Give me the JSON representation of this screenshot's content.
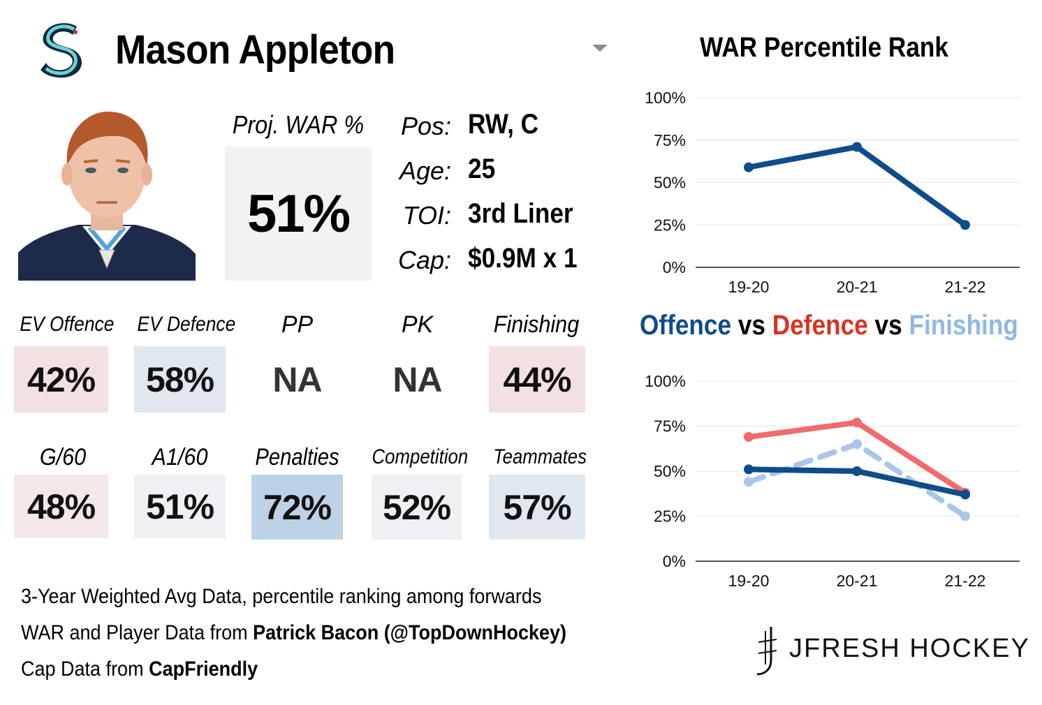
{
  "header": {
    "player_name": "Mason Appleton",
    "team_logo_icon": "seattle-kraken-logo-icon",
    "dropdown_icon": "caret-down-icon"
  },
  "projection": {
    "label": "Proj. WAR %",
    "value": "51%"
  },
  "info": [
    {
      "label": "Pos:",
      "value": "RW, C"
    },
    {
      "label": "Age:",
      "value": "25"
    },
    {
      "label": "TOI:",
      "value": "3rd Liner"
    },
    {
      "label": "Cap:",
      "value": "$0.9M x 1"
    }
  ],
  "tiles_row1": [
    {
      "label": "EV Offence",
      "value": "42%",
      "color": "#f3e1e1"
    },
    {
      "label": "EV Defence",
      "value": "58%",
      "color": "#dfe7ef"
    },
    {
      "label": "PP",
      "value": "NA",
      "color": "#ffffff"
    },
    {
      "label": "PK",
      "value": "NA",
      "color": "#ffffff"
    },
    {
      "label": "Finishing",
      "value": "44%",
      "color": "#f3e1e1"
    }
  ],
  "tiles_row2": [
    {
      "label": "G/60",
      "value": "48%",
      "color": "#f4e7e8"
    },
    {
      "label": "A1/60",
      "value": "51%",
      "color": "#eef0f3"
    },
    {
      "label": "Penalties",
      "value": "72%",
      "color": "#bdd2e6"
    },
    {
      "label": "Competition",
      "value": "52%",
      "color": "#eef0f3"
    },
    {
      "label": "Teammates",
      "value": "57%",
      "color": "#dfe7ef"
    }
  ],
  "footer": {
    "line1": "3-Year Weighted Avg Data, percentile ranking among forwards",
    "line2_prefix": "WAR and Player Data from ",
    "line2_bold": "Patrick Bacon (@TopDownHockey)",
    "line3_prefix": "Cap Data from ",
    "line3_bold": "CapFriendly"
  },
  "brand": {
    "text": "JFRESH HOCKEY",
    "icon": "jfresh-hockey-stick-logo-icon"
  },
  "chart_titles": {
    "war": "WAR Percentile Rank",
    "ovd_part1": "Offence",
    "ovd_sep1": " vs ",
    "ovd_part2": "Defence",
    "ovd_sep2": " vs ",
    "ovd_part3": "Finishing"
  },
  "colors": {
    "offence": "#0f4c8a",
    "defence": "#f26b6b",
    "finishing": "#a9c6e8",
    "ovd_title_offence": "#0f4c8a",
    "ovd_title_defence": "#d9321f",
    "ovd_title_finishing": "#8fb8e6"
  },
  "chart_data": [
    {
      "type": "line",
      "title": "WAR Percentile Rank",
      "x": [
        "19-20",
        "20-21",
        "21-22"
      ],
      "ylim": [
        0,
        100
      ],
      "yticks": [
        "0%",
        "25%",
        "50%",
        "75%",
        "100%"
      ],
      "grid": true,
      "series": [
        {
          "values": [
            59,
            71,
            25
          ],
          "color": "#0f4c8a",
          "dash": false
        }
      ]
    },
    {
      "type": "line",
      "title": "Offence vs Defence vs Finishing",
      "x": [
        "19-20",
        "20-21",
        "21-22"
      ],
      "ylim": [
        0,
        100
      ],
      "yticks": [
        "0%",
        "25%",
        "50%",
        "75%",
        "100%"
      ],
      "grid": true,
      "series": [
        {
          "values": [
            44,
            65,
            25
          ],
          "color": "#a9c6e8",
          "dash": true
        },
        {
          "values": [
            69,
            77,
            38
          ],
          "color": "#f26b6b",
          "dash": false
        },
        {
          "values": [
            51,
            50,
            37
          ],
          "color": "#0f4c8a",
          "dash": false
        }
      ]
    }
  ]
}
